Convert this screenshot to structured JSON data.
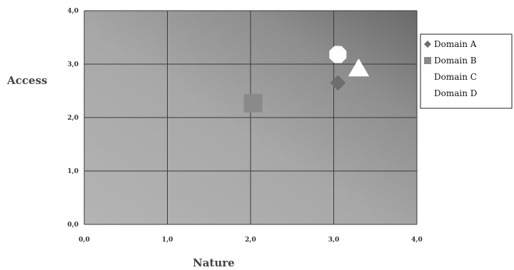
{
  "chart_data": {
    "type": "scatter",
    "xlabel": "Nature",
    "ylabel": "Access",
    "xlim": [
      0,
      4
    ],
    "ylim": [
      0,
      4
    ],
    "x_ticks": [
      "0,0",
      "1,0",
      "2,0",
      "3,0",
      "4,0"
    ],
    "y_ticks": [
      "0,0",
      "1,0",
      "2,0",
      "3,0",
      "4,0"
    ],
    "grid": true,
    "legend_position": "right",
    "series": [
      {
        "name": "Domain A",
        "marker": "diamond",
        "color": "#6e6e6e",
        "points": [
          {
            "x": 3.05,
            "y": 2.65
          }
        ]
      },
      {
        "name": "Domain B",
        "marker": "square",
        "color": "#8a8a8a",
        "points": [
          {
            "x": 2.03,
            "y": 2.27
          }
        ]
      },
      {
        "name": "Domain C",
        "marker": "triangle",
        "color": "#ffffff",
        "points": [
          {
            "x": 3.3,
            "y": 2.92
          }
        ]
      },
      {
        "name": "Domain D",
        "marker": "octagon",
        "color": "#ffffff",
        "points": [
          {
            "x": 3.05,
            "y": 3.18
          }
        ]
      }
    ]
  }
}
